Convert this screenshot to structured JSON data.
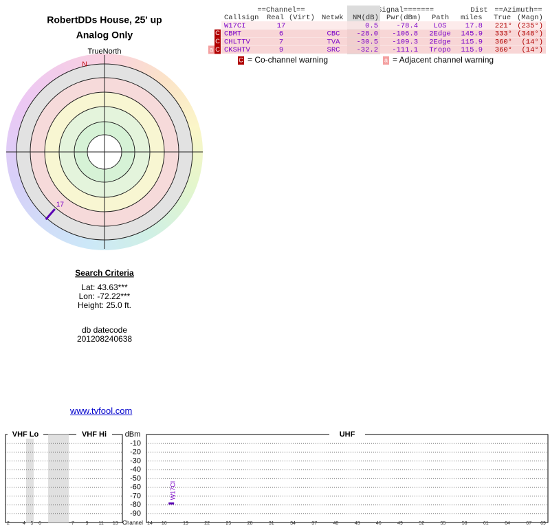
{
  "header": {
    "title": "RobertDDs House, 25' up",
    "subtitle": "Analog Only"
  },
  "polar": {
    "north_label": "TrueNorth",
    "north_marker": "N",
    "stations": [
      {
        "label": "17",
        "azimuth_deg": 221
      }
    ]
  },
  "table": {
    "group_headers": [
      "==Channel==",
      "=======Signal=======",
      "Dist",
      "==Azimuth=="
    ],
    "headers": [
      "Callsign",
      "Real",
      "(Virt)",
      "Netwk",
      "NM(dB)",
      "Pwr(dBm)",
      "Path",
      "miles",
      "True",
      "(Magn)"
    ],
    "rows": [
      {
        "callsign": "W17CI",
        "real": "17",
        "nm": "0.5",
        "pwr": "-78.4",
        "path": "LOS",
        "miles": "17.8",
        "true": "221°",
        "magn": "(235°)"
      },
      {
        "flags": [
          "C"
        ],
        "callsign": "CBMT",
        "real": "6",
        "netwk": "CBC",
        "nm": "-28.0",
        "pwr": "-106.8",
        "path": "2Edge",
        "miles": "145.9",
        "true": "333°",
        "magn": "(348°)"
      },
      {
        "flags": [
          "C"
        ],
        "callsign": "CHLTTV",
        "real": "7",
        "netwk": "TVA",
        "nm": "-30.5",
        "pwr": "-109.3",
        "path": "2Edge",
        "miles": "115.9",
        "true": "360°",
        "magn": "(14°)"
      },
      {
        "flags": [
          "a",
          "C"
        ],
        "callsign": "CKSHTV",
        "real": "9",
        "netwk": "SRC",
        "nm": "-32.2",
        "pwr": "-111.1",
        "path": "Tropo",
        "miles": "115.9",
        "true": "360°",
        "magn": "(14°)"
      }
    ]
  },
  "legend": {
    "co_icon": "C",
    "co_text": "= Co-channel warning",
    "adj_icon": "a",
    "adj_text": "= Adjacent channel warning"
  },
  "search": {
    "title": "Search Criteria",
    "lat": "Lat: 43.63***",
    "lon": "Lon: -72.22***",
    "height": "Height: 25.0 ft.",
    "datecode_label": "db datecode",
    "datecode": "201208240638"
  },
  "link": "www.tvfool.com",
  "spectrum": {
    "bands": [
      "VHF Lo",
      "VHF Hi",
      "UHF"
    ],
    "unit": "dBm",
    "yticks": [
      -10,
      -20,
      -30,
      -40,
      -50,
      -60,
      -70,
      -80,
      -90
    ],
    "channel_label": "Channel",
    "vhf_lo_channels": [
      2,
      4,
      5,
      6
    ],
    "vhf_hi_channels": [
      7,
      9,
      11,
      13
    ],
    "uhf_channels": [
      14,
      16,
      19,
      22,
      25,
      28,
      31,
      34,
      37,
      40,
      43,
      46,
      49,
      52,
      55,
      58,
      61,
      64,
      67,
      69
    ],
    "signals": [
      {
        "label": "W17CI",
        "channel": 17,
        "dbm": -78.4
      }
    ]
  }
}
